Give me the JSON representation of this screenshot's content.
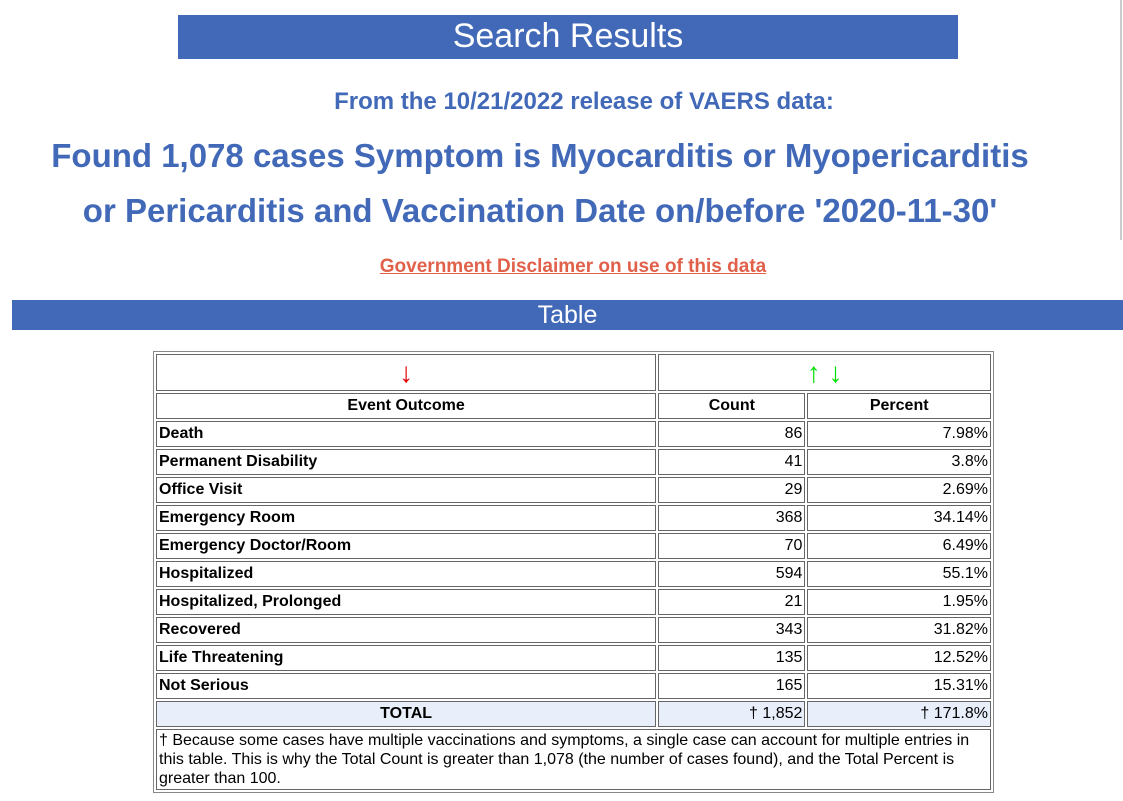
{
  "header": {
    "title": "Search Results",
    "release": "From the 10/21/2022 release of VAERS data:",
    "line1": "Found 1,078 cases Symptom is Myocarditis or Myopericarditis",
    "line2": "or Pericarditis and Vaccination Date on/before '2020-11-30'",
    "disclaimer": "Government Disclaimer on use of this data"
  },
  "section": {
    "title": "Table"
  },
  "table": {
    "sort_icons": {
      "left": "↓",
      "right_up": "↑",
      "right_down": "↓",
      "left_color": "#e00000",
      "right_color": "#00e000"
    },
    "columns": [
      "Event Outcome",
      "Count",
      "Percent"
    ],
    "rows": [
      {
        "outcome": "Death",
        "count": "86",
        "percent": "7.98%"
      },
      {
        "outcome": "Permanent Disability",
        "count": "41",
        "percent": "3.8%"
      },
      {
        "outcome": "Office Visit",
        "count": "29",
        "percent": "2.69%"
      },
      {
        "outcome": "Emergency Room",
        "count": "368",
        "percent": "34.14%"
      },
      {
        "outcome": "Emergency Doctor/Room",
        "count": "70",
        "percent": "6.49%"
      },
      {
        "outcome": "Hospitalized",
        "count": "594",
        "percent": "55.1%"
      },
      {
        "outcome": "Hospitalized, Prolonged",
        "count": "21",
        "percent": "1.95%"
      },
      {
        "outcome": "Recovered",
        "count": "343",
        "percent": "31.82%"
      },
      {
        "outcome": "Life Threatening",
        "count": "135",
        "percent": "12.52%"
      },
      {
        "outcome": "Not Serious",
        "count": "165",
        "percent": "15.31%"
      }
    ],
    "total": {
      "label": "TOTAL",
      "count": "† 1,852",
      "percent": "† 171.8%"
    },
    "note": "† Because some cases have multiple vaccinations and symptoms, a single case can account for multiple entries in this table. This is why the Total Count is greater than 1,078 (the number of cases found), and the Total Percent is greater than 100."
  }
}
